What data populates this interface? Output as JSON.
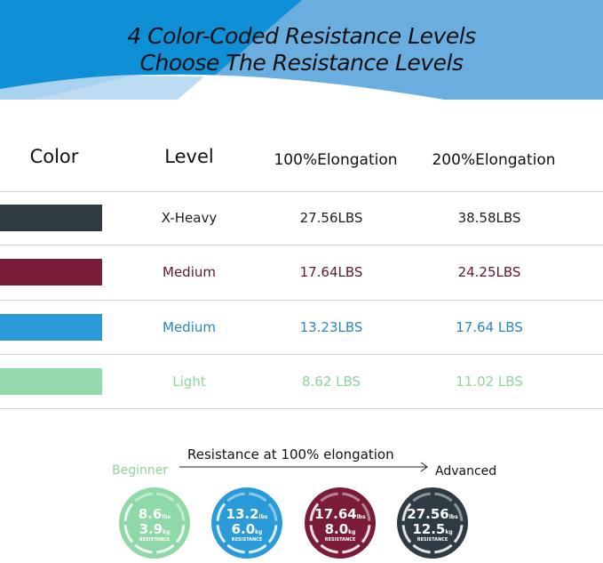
{
  "header": {
    "title_line1": "4 Color-Coded Resistance Levels",
    "title_line2": "Choose The Resistance Levels"
  },
  "table": {
    "headers": [
      "Color",
      "Level",
      "100%Elongation",
      "200%Elongation"
    ],
    "rows": [
      {
        "color": "#2f3b42",
        "text_color": "#1e1e1e",
        "level": "X-Heavy",
        "e100": "27.56LBS",
        "e200": "38.58LBS"
      },
      {
        "color": "#7a1c38",
        "text_color": "#5a1a2c",
        "level": "Medium",
        "e100": "17.64LBS",
        "e200": "24.25LBS"
      },
      {
        "color": "#2a9ad8",
        "text_color": "#2a88bd",
        "level": "Medium",
        "e100": "13.23LBS",
        "e200": "17.64 LBS"
      },
      {
        "color": "#93dbac",
        "text_color": "#8ed3a2",
        "level": "Light",
        "e100": "8.62 LBS",
        "e200": "11.02 LBS"
      }
    ]
  },
  "scale": {
    "title": "Resistance at 100% elongation",
    "start": "Beginner",
    "end": "Advanced",
    "circles": [
      {
        "color": "#8fd9a8",
        "lbs": "8.6",
        "kg": "3.9",
        "lbs_unit": "lbs",
        "kg_unit": "kg",
        "label": "RESISTANCE"
      },
      {
        "color": "#2a9ad8",
        "lbs": "13.2",
        "kg": "6.0",
        "lbs_unit": "lbs",
        "kg_unit": "kg",
        "label": "RESISTANCE"
      },
      {
        "color": "#7a1c38",
        "lbs": "17.64",
        "kg": "8.0",
        "lbs_unit": "lbs",
        "kg_unit": "kg",
        "label": "RESISTANCE"
      },
      {
        "color": "#2f3b42",
        "lbs": "27.56",
        "kg": "12.5",
        "lbs_unit": "lbs",
        "kg_unit": "kg",
        "label": "RESISTANCE"
      }
    ]
  }
}
